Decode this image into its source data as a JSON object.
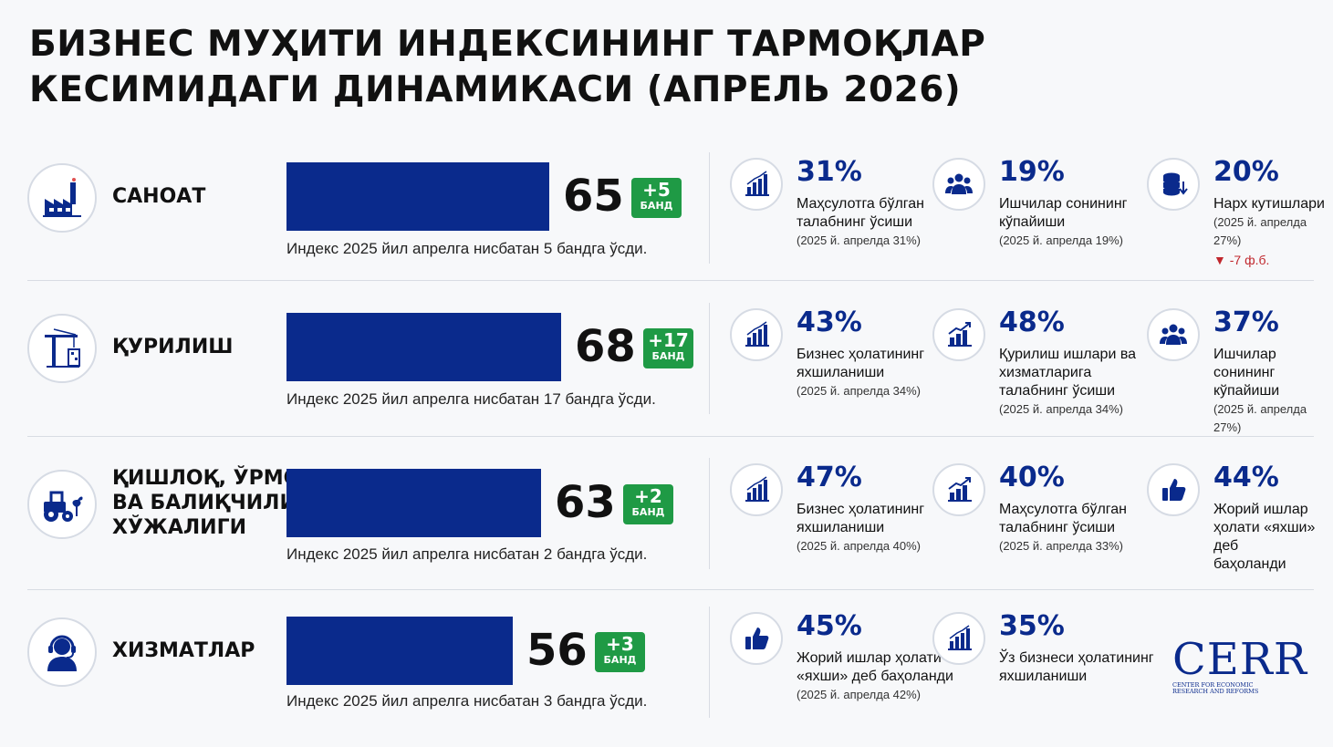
{
  "title": {
    "line1": "БИЗНЕС МУҲИТИ ИНДЕКСИНИНГ ТАРМОҚЛАР",
    "line2": "КЕСИМИДАГИ ДИНАМИКАСИ (АПРЕЛЬ 2026)"
  },
  "colors": {
    "bar": "#0a2a8c",
    "badge": "#1f9a45",
    "accent": "#0a2a8c",
    "negative": "#c0272d"
  },
  "chart_data": {
    "type": "bar",
    "title": "БИЗНЕС МУҲИТИ ИНДЕКСИНИНГ ТАРМОҚЛАР КЕСИМИДАГИ ДИНАМИКАСИ (АПРЕЛЬ 2026)",
    "categories": [
      "САНОАТ",
      "ҚУРИЛИШ",
      "ҚИШЛОҚ, ЎРМОН ВА БАЛИҚЧИЛИК ХЎЖАЛИГИ",
      "ХИЗМАТЛАР"
    ],
    "values": [
      65,
      68,
      63,
      56
    ],
    "changes": [
      5,
      17,
      2,
      3
    ],
    "xlim": [
      0,
      68
    ]
  },
  "sectors": [
    {
      "name_lines": [
        "САНОАТ"
      ],
      "icon": "factory-icon",
      "value": "65",
      "badge_num": "+5",
      "badge_label": "БАНД",
      "note": "Индекс 2025 йил апрелга нисбатан 5 бандга ўсди.",
      "metrics": [
        {
          "icon": "bar-chart-icon",
          "pct": "31%",
          "label_lines": [
            "Маҳсулотга бўлган",
            "талабнинг ўсиши"
          ],
          "note": "(2025 й. апрелда 31%)",
          "delta": ""
        },
        {
          "icon": "people-icon",
          "pct": "19%",
          "label_lines": [
            "Ишчилар сонининг",
            "кўпайиши"
          ],
          "note": "(2025 й. апрелда 19%)",
          "delta": ""
        },
        {
          "icon": "coins-icon",
          "pct": "20%",
          "label_lines": [
            "Нарх кутишлари"
          ],
          "note": "(2025 й. апрелда 27%)",
          "delta": "▼ -7 ф.б."
        }
      ]
    },
    {
      "name_lines": [
        "ҚУРИЛИШ"
      ],
      "icon": "crane-icon",
      "value": "68",
      "badge_num": "+17",
      "badge_label": "БАНД",
      "note": "Индекс 2025 йил апрелга нисбатан 17 бандга ўсди.",
      "metrics": [
        {
          "icon": "bar-chart-icon",
          "pct": "43%",
          "label_lines": [
            "Бизнес ҳолатининг",
            "яхшиланиши"
          ],
          "note": "(2025 й. апрелда 34%)",
          "delta": ""
        },
        {
          "icon": "growth-chart-icon",
          "pct": "48%",
          "label_lines": [
            "Қурилиш ишлари ва",
            "хизматларига",
            "талабнинг ўсиши"
          ],
          "note": "(2025 й. апрелда 34%)",
          "delta": ""
        },
        {
          "icon": "people-icon",
          "pct": "37%",
          "label_lines": [
            "Ишчилар сонининг",
            "кўпайиши"
          ],
          "note": "(2025 й. апрелда 27%)",
          "delta": ""
        }
      ]
    },
    {
      "name_lines": [
        "ҚИШЛОҚ, ЎРМОН",
        "ВА БАЛИҚЧИЛИК",
        "ХЎЖАЛИГИ"
      ],
      "icon": "tractor-icon",
      "value": "63",
      "badge_num": "+2",
      "badge_label": "БАНД",
      "note": "Индекс 2025 йил апрелга нисбатан 2 бандга ўсди.",
      "metrics": [
        {
          "icon": "bar-chart-icon",
          "pct": "47%",
          "label_lines": [
            "Бизнес ҳолатининг",
            "яхшиланиши"
          ],
          "note": "(2025 й. апрелда 40%)",
          "delta": ""
        },
        {
          "icon": "growth-chart-icon",
          "pct": "40%",
          "label_lines": [
            "Маҳсулотга бўлган",
            "талабнинг ўсиши"
          ],
          "note": "(2025 й. апрелда 33%)",
          "delta": ""
        },
        {
          "icon": "thumbs-up-icon",
          "pct": "44%",
          "label_lines": [
            "Жорий ишлар",
            "ҳолати «яхши» деб",
            "баҳоланди"
          ],
          "note": "",
          "delta": ""
        }
      ]
    },
    {
      "name_lines": [
        "ХИЗМАТЛАР"
      ],
      "icon": "headset-icon",
      "value": "56",
      "badge_num": "+3",
      "badge_label": "БАНД",
      "note": "Индекс 2025 йил апрелга нисбатан 3 бандга ўсди.",
      "metrics": [
        {
          "icon": "thumbs-up-icon",
          "pct": "45%",
          "label_lines": [
            "Жорий ишлар ҳолати",
            "«яхши» деб баҳоланди"
          ],
          "note": "(2025 й. апрелда 42%)",
          "delta": ""
        },
        {
          "icon": "bar-chart-icon",
          "pct": "35%",
          "label_lines": [
            "Ўз бизнеси ҳолатининг",
            "яхшиланиши"
          ],
          "note": "",
          "delta": ""
        }
      ]
    }
  ],
  "logo": {
    "word": "CERR",
    "sub_line1": "CENTER FOR ECONOMIC",
    "sub_line2": "RESEARCH AND REFORMS"
  }
}
